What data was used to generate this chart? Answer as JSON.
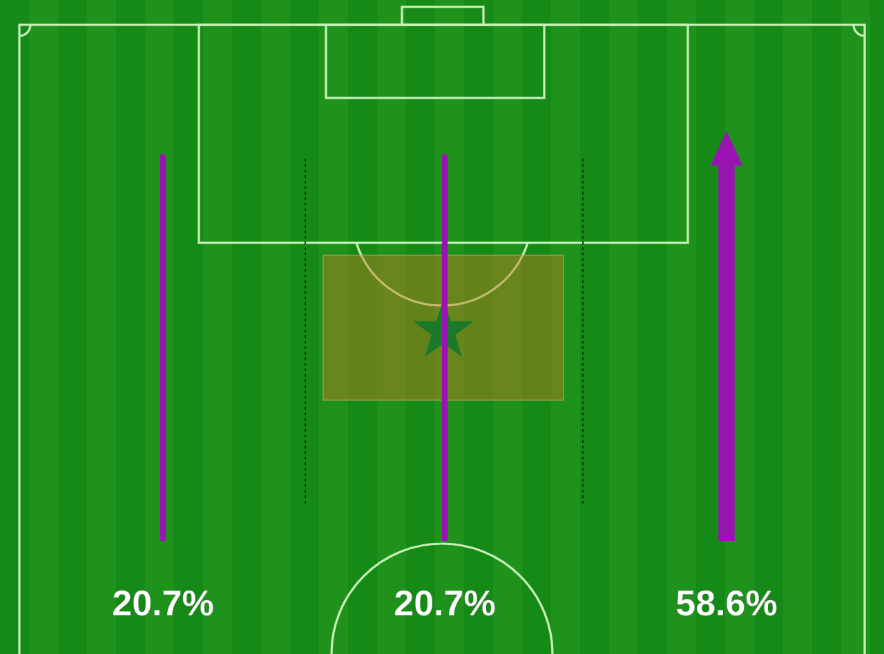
{
  "chart_data": {
    "type": "other",
    "categories": [
      null,
      null,
      null
    ],
    "values": [
      20.7,
      20.7,
      58.6
    ],
    "value_labels": [
      "20.7%",
      "20.7%",
      "58.6%"
    ],
    "color": "#9a14b4"
  }
}
